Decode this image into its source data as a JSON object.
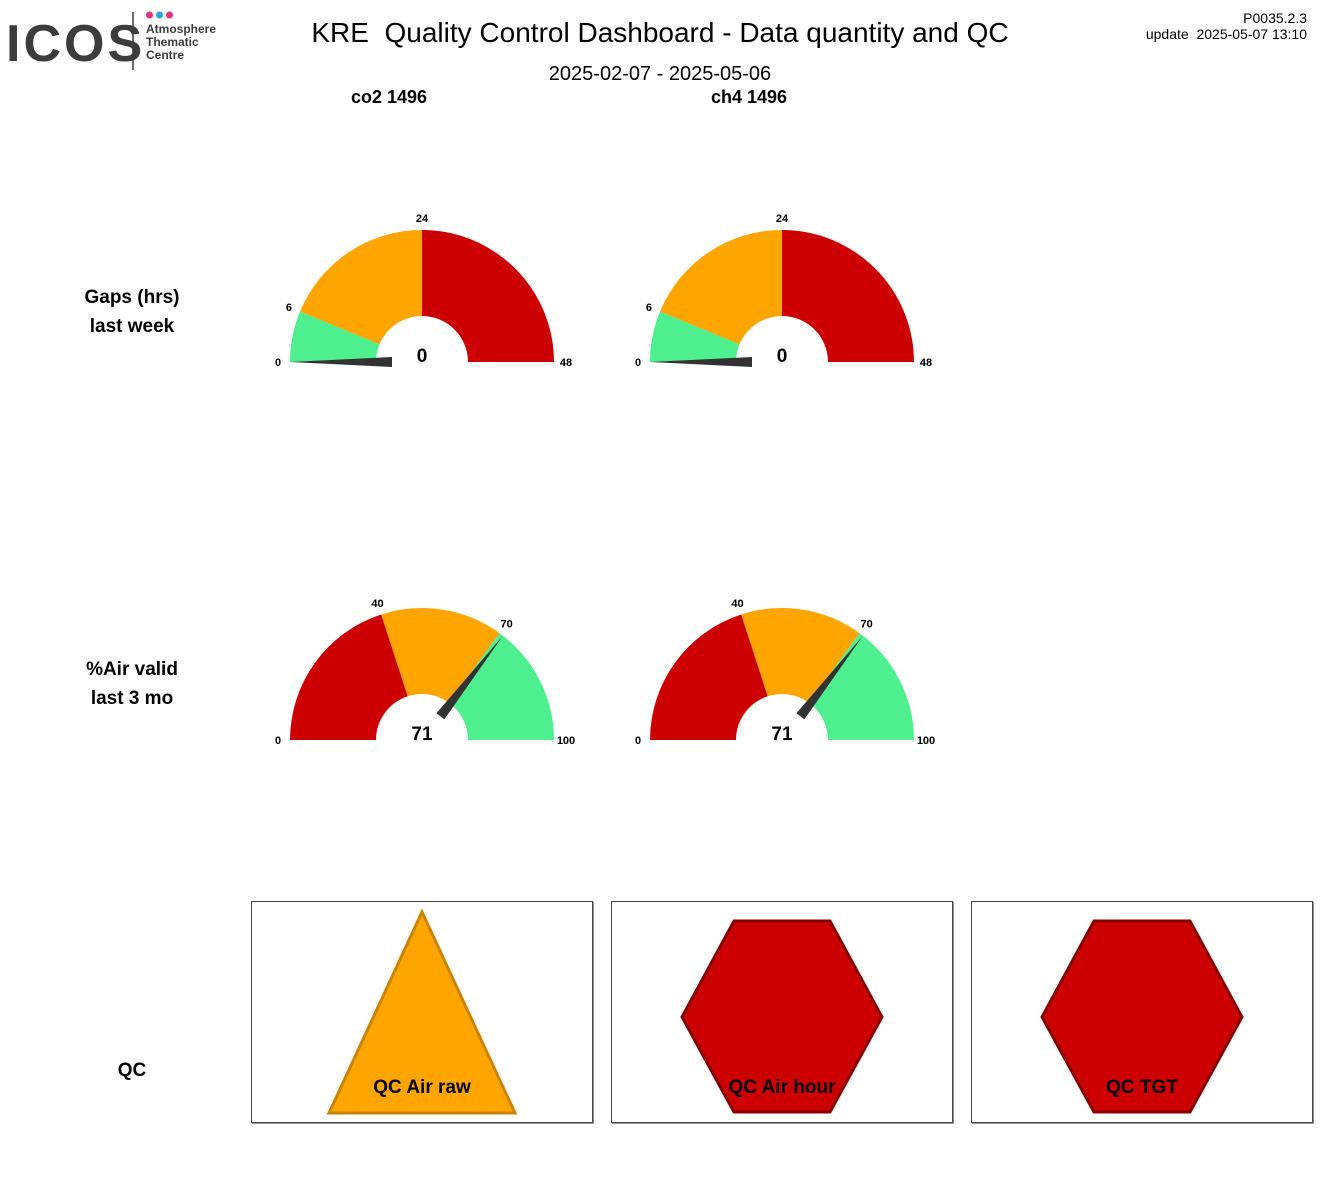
{
  "header": {
    "logo_text": "ICOS",
    "logo_subtext": [
      "Atmosphere",
      "Thematic",
      "Centre"
    ],
    "logo_dot_colors": [
      "#e6327d",
      "#2fa3e6",
      "#e6327d"
    ],
    "title": "KRE  Quality Control Dashboard - Data quantity and QC",
    "date_range": "2025-02-07 - 2025-05-06",
    "version": "P0035.2.3",
    "update": "update  2025-05-07 13:10"
  },
  "columns": [
    "co2 1496",
    "ch4 1496"
  ],
  "rows": {
    "gaps": [
      "Gaps (hrs)",
      "last week"
    ],
    "air_valid": [
      "%Air valid",
      "last 3 mo"
    ],
    "qc": "QC"
  },
  "colors": {
    "green": "#4def8f",
    "orange": "#ffa500",
    "red": "#cc0000",
    "needle": "#333333",
    "triangle_border": "#cc8400",
    "hexagon_border": "#880000"
  },
  "chart_data": [
    {
      "type": "gauge",
      "series": "co2 1496",
      "metric": "Gaps (hrs) last week",
      "range": [
        0,
        48
      ],
      "ticks": [
        0,
        6,
        24,
        48
      ],
      "bands": [
        {
          "from": 0,
          "to": 6,
          "color": "green"
        },
        {
          "from": 6,
          "to": 24,
          "color": "orange"
        },
        {
          "from": 24,
          "to": 48,
          "color": "red"
        }
      ],
      "value": 0
    },
    {
      "type": "gauge",
      "series": "ch4 1496",
      "metric": "Gaps (hrs) last week",
      "range": [
        0,
        48
      ],
      "ticks": [
        0,
        6,
        24,
        48
      ],
      "bands": [
        {
          "from": 0,
          "to": 6,
          "color": "green"
        },
        {
          "from": 6,
          "to": 24,
          "color": "orange"
        },
        {
          "from": 24,
          "to": 48,
          "color": "red"
        }
      ],
      "value": 0
    },
    {
      "type": "gauge",
      "series": "co2 1496",
      "metric": "%Air valid last 3 mo",
      "range": [
        0,
        100
      ],
      "ticks": [
        0,
        40,
        70,
        100
      ],
      "bands": [
        {
          "from": 0,
          "to": 40,
          "color": "red"
        },
        {
          "from": 40,
          "to": 70,
          "color": "orange"
        },
        {
          "from": 70,
          "to": 100,
          "color": "green"
        }
      ],
      "value": 71
    },
    {
      "type": "gauge",
      "series": "ch4 1496",
      "metric": "%Air valid last 3 mo",
      "range": [
        0,
        100
      ],
      "ticks": [
        0,
        40,
        70,
        100
      ],
      "bands": [
        {
          "from": 0,
          "to": 40,
          "color": "red"
        },
        {
          "from": 40,
          "to": 70,
          "color": "orange"
        },
        {
          "from": 70,
          "to": 100,
          "color": "green"
        }
      ],
      "value": 71
    }
  ],
  "qc_indicators": [
    {
      "label": "QC Air raw",
      "shape": "triangle",
      "status": "warning",
      "color": "orange"
    },
    {
      "label": "QC Air hour",
      "shape": "hexagon",
      "status": "error",
      "color": "red"
    },
    {
      "label": "QC TGT",
      "shape": "hexagon",
      "status": "error",
      "color": "red"
    }
  ]
}
